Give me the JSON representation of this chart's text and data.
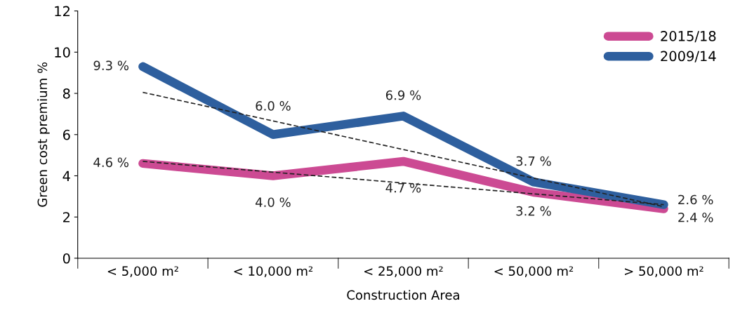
{
  "chart_data": {
    "type": "line",
    "xlabel": "Construction Area",
    "ylabel": "Green cost premium %",
    "categories": [
      "< 5,000 m²",
      "< 10,000 m²",
      "< 25,000 m²",
      "< 50,000 m²",
      "> 50,000 m²"
    ],
    "series": [
      {
        "name": "2015/18",
        "color": "#cc4a93",
        "values": [
          4.6,
          4.0,
          4.7,
          3.2,
          2.4
        ],
        "value_labels": [
          "4.6 %",
          "4.0 %",
          "4.7 %",
          "3.2 %",
          "2.4 %"
        ]
      },
      {
        "name": "2009/14",
        "color": "#2e5f9e",
        "values": [
          9.3,
          6.0,
          6.9,
          3.7,
          2.6
        ],
        "value_labels": [
          "9.3 %",
          "6.0 %",
          "6.9 %",
          "3.7 %",
          "2.6 %"
        ]
      },
      {
        "type": "line",
        "color": "#222222",
        "line_style": "dashed",
        "x": [
          "< 5,000 m²",
          "> 50,000 m²"
        ],
        "values": [
          4.7,
          2.6
        ]
      },
      {
        "type": "line",
        "color": "#222222",
        "line_style": "dashed",
        "x": [
          "< 5,000 m²",
          "> 50,000 m²"
        ],
        "values": [
          8.05,
          2.5
        ]
      }
    ],
    "ylim": [
      0,
      12
    ],
    "yticks": [
      0,
      2,
      4,
      6,
      8,
      10,
      12
    ],
    "legend": "top right",
    "grid": false
  }
}
